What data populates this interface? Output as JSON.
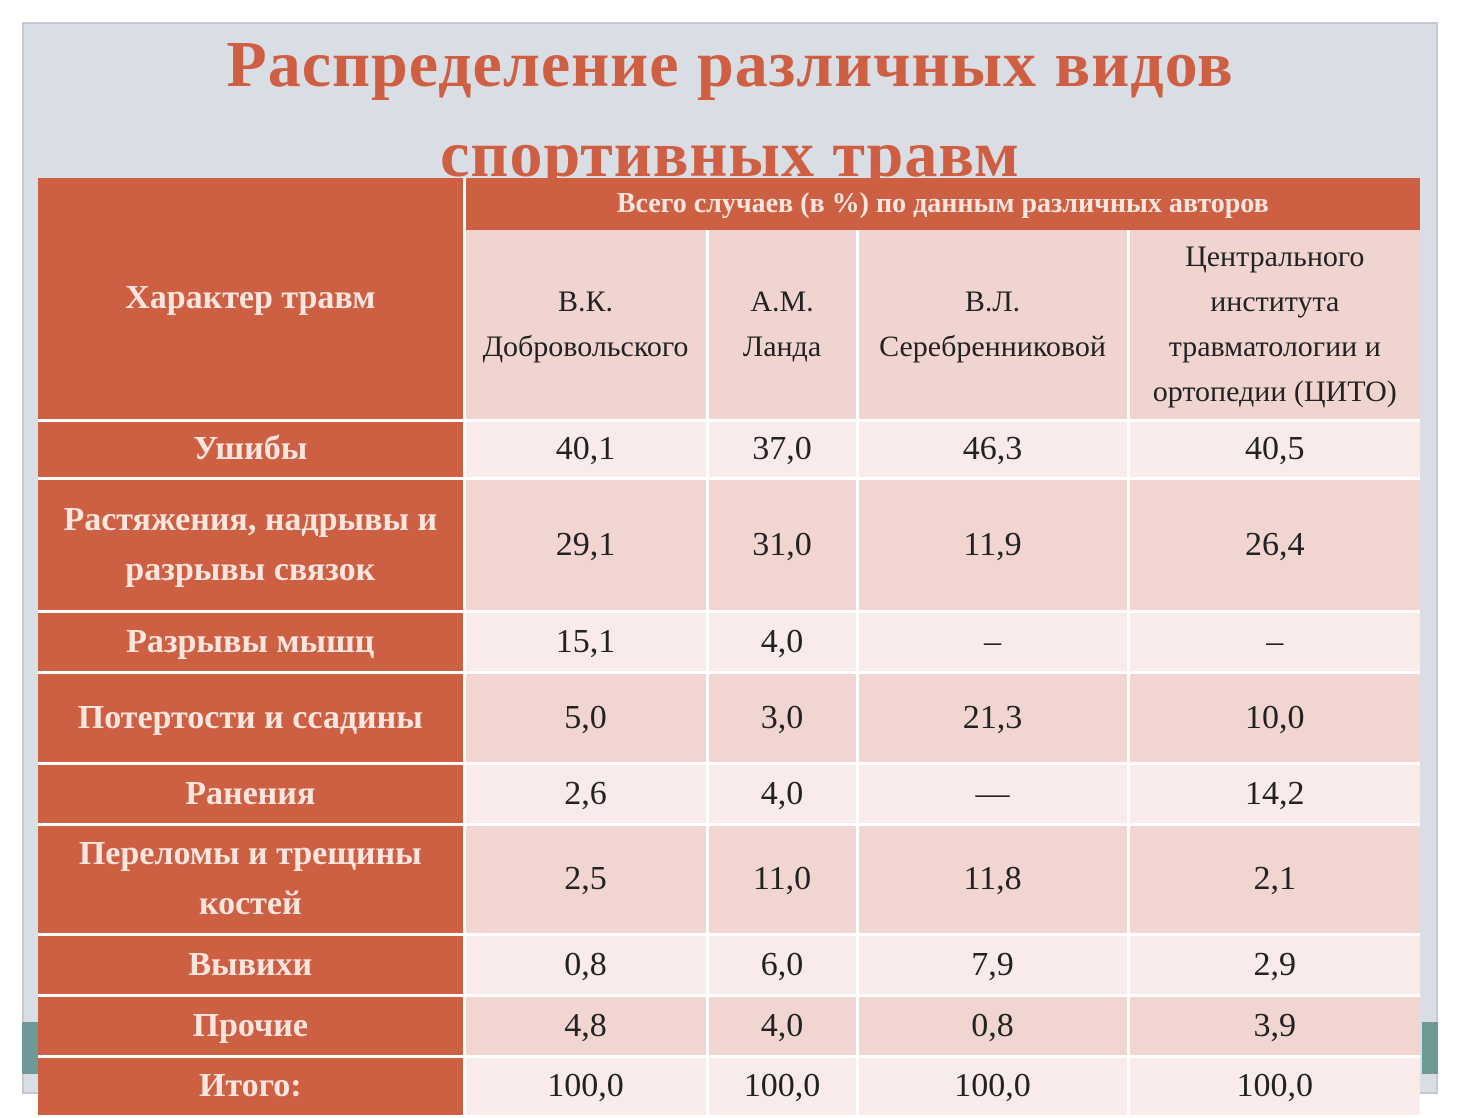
{
  "title": {
    "line1": "Распределение различных видов",
    "line2": "спортивных травм"
  },
  "table": {
    "first_column_header": "Характер травм",
    "group_header": "Всего случаев (в %) по данным различных авторов",
    "authors": [
      [
        "В.К.",
        "Добровольского"
      ],
      [
        "А.М.",
        "Ланда"
      ],
      [
        "В.Л.",
        "Серебренниковой"
      ],
      [
        "Центрального",
        "института",
        "травматологии и",
        "ортопедии (ЦИТО)"
      ]
    ],
    "rows": [
      {
        "label": [
          "Ушибы"
        ],
        "values": [
          "40,1",
          "37,0",
          "46,3",
          "40,5"
        ]
      },
      {
        "label": [
          "Растяжения, надрывы и",
          "разрывы связок"
        ],
        "values": [
          "29,1",
          "31,0",
          "11,9",
          "26,4"
        ]
      },
      {
        "label": [
          "Разрывы мышц"
        ],
        "values": [
          "15,1",
          "4,0",
          "–",
          "–"
        ]
      },
      {
        "label": [
          "Потертости и ссадины"
        ],
        "values": [
          "5,0",
          "3,0",
          "21,3",
          "10,0"
        ]
      },
      {
        "label": [
          "Ранения"
        ],
        "values": [
          "2,6",
          "4,0",
          "—",
          "14,2"
        ]
      },
      {
        "label": [
          "Переломы и трещины",
          "костей"
        ],
        "values": [
          "2,5",
          "11,0",
          "11,8",
          "2,1"
        ]
      },
      {
        "label": [
          "Вывихи"
        ],
        "values": [
          "0,8",
          "6,0",
          "7,9",
          "2,9"
        ]
      },
      {
        "label": [
          "Прочие"
        ],
        "values": [
          "4,8",
          "4,0",
          "0,8",
          "3,9"
        ]
      },
      {
        "label": [
          "Итого:"
        ],
        "values": [
          "100,0",
          "100,0",
          "100,0",
          "100,0"
        ]
      }
    ]
  },
  "colors": {
    "accent": "#cd5f43",
    "title": "#cf5f43",
    "header_text": "#fbe5df",
    "row_light": "#f8ebe9",
    "row_dark": "#f0d5d1",
    "slide_background": "#d9dde4"
  }
}
